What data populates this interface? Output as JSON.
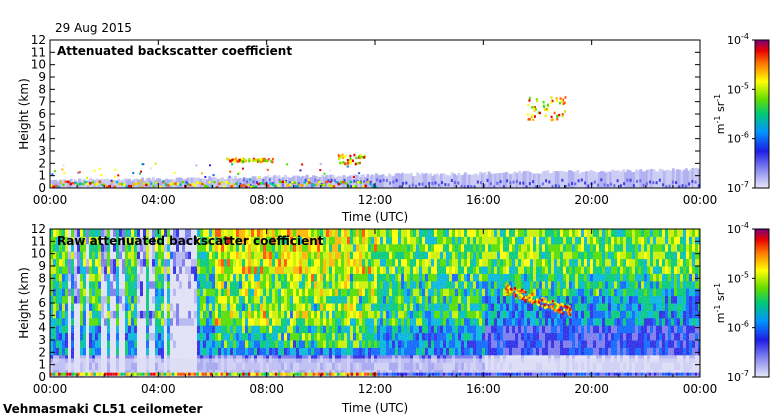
{
  "date_label": "29 Aug 2015",
  "instrument_label": "Vehmasmaki CL51 ceilometer",
  "chart_data": [
    {
      "type": "heatmap",
      "title": "Attenuated backscatter coefficient",
      "xlabel": "Time (UTC)",
      "ylabel": "Height (km)",
      "x_ticks": [
        "00:00",
        "04:00",
        "08:00",
        "12:00",
        "16:00",
        "20:00",
        "00:00"
      ],
      "y_ticks": [
        "0",
        "1",
        "2",
        "3",
        "4",
        "5",
        "6",
        "7",
        "8",
        "9",
        "10",
        "11",
        "12"
      ],
      "xlim_hours": [
        0,
        24
      ],
      "ylim_km": [
        0,
        12
      ],
      "colorbar": {
        "ticks": [
          "10",
          "10",
          "10",
          "10"
        ],
        "exponents": [
          "-4",
          "-5",
          "-6",
          "-7"
        ],
        "label": "m",
        "label_exp1": "-1",
        "label_mid": " sr",
        "label_exp2": "-1",
        "scale": "log",
        "range": [
          1e-07,
          0.0001
        ]
      },
      "features": [
        {
          "kind": "boundary_layer",
          "from_h": 0,
          "to_h": 24,
          "top_km_start": 0.6,
          "top_km_end": 1.5
        },
        {
          "kind": "cloud",
          "time_h": [
            17.6,
            19.0
          ],
          "height_km": [
            5.6,
            7.5
          ]
        },
        {
          "kind": "cloud",
          "time_h": [
            6.5,
            8.2
          ],
          "height_km": [
            2.2,
            2.5
          ]
        },
        {
          "kind": "cloud",
          "time_h": [
            10.6,
            11.6
          ],
          "height_km": [
            2.0,
            2.8
          ]
        }
      ]
    },
    {
      "type": "heatmap",
      "title": "Raw attenuated backscatter coefficient",
      "xlabel": "Time (UTC)",
      "ylabel": "Height (km)",
      "x_ticks": [
        "00:00",
        "04:00",
        "08:00",
        "12:00",
        "16:00",
        "20:00",
        "00:00"
      ],
      "y_ticks": [
        "0",
        "1",
        "2",
        "3",
        "4",
        "5",
        "6",
        "7",
        "8",
        "9",
        "10",
        "11",
        "12"
      ],
      "xlim_hours": [
        0,
        24
      ],
      "ylim_km": [
        0,
        12
      ],
      "colorbar": {
        "ticks": [
          "10",
          "10",
          "10",
          "10"
        ],
        "exponents": [
          "-4",
          "-5",
          "-6",
          "-7"
        ],
        "label": "m",
        "label_exp1": "-1",
        "label_mid": " sr",
        "label_exp2": "-1",
        "scale": "log",
        "range": [
          1e-07,
          0.0001
        ]
      },
      "features": [
        {
          "kind": "noisy_background",
          "from_h": 0,
          "to_h": 24
        },
        {
          "kind": "cloud",
          "time_h": [
            16.8,
            19.2
          ],
          "height_km": [
            5.4,
            7.2
          ]
        }
      ]
    }
  ]
}
